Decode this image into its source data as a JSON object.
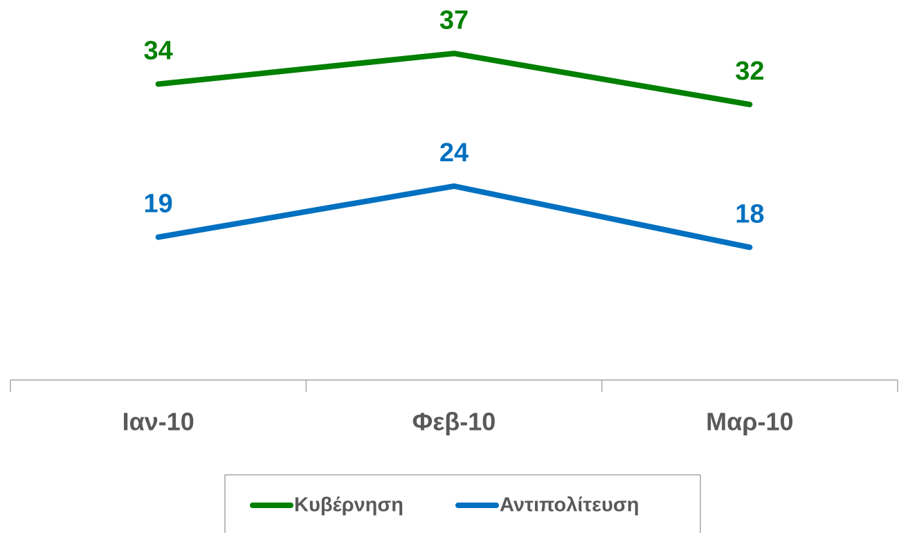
{
  "chart_data": {
    "type": "line",
    "categories": [
      "Ιαν-10",
      "Φεβ-10",
      "Μαρ-10"
    ],
    "series": [
      {
        "name": "Κυβέρνηση",
        "color": "#008000",
        "values": [
          34,
          37,
          32
        ]
      },
      {
        "name": "Αντιπολίτευση",
        "color": "#0070c0",
        "values": [
          19,
          24,
          18
        ]
      }
    ],
    "ylim": [
      5,
      40
    ],
    "legend": "bottom"
  }
}
